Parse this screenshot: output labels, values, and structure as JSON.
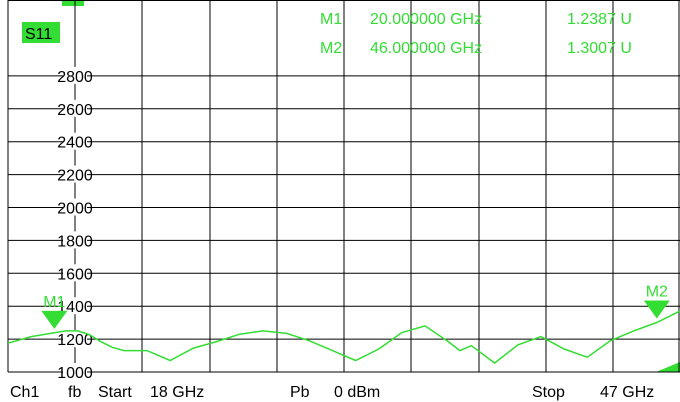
{
  "trace_label": "S11",
  "markers": [
    {
      "name": "M1",
      "freq": "20.000000 GHz",
      "value": "1.2387 U",
      "x_ghz": 20
    },
    {
      "name": "M2",
      "freq": "46.000000 GHz",
      "value": "1.3007 U",
      "x_ghz": 46
    }
  ],
  "status_bar": {
    "channel": "Ch1",
    "mode": "fb",
    "start_label": "Start",
    "start_value": "18 GHz",
    "power_label": "Pb",
    "power_value": "0 dBm",
    "stop_label": "Stop",
    "stop_value": "47 GHz"
  },
  "colors": {
    "trace": "#33dd33",
    "grid": "#000000",
    "background": "#ffffff",
    "text": "#000000"
  },
  "chart_data": {
    "type": "line",
    "title": "",
    "xlabel": "",
    "ylabel": "",
    "xlim": [
      18,
      47
    ],
    "ylim": [
      1000,
      2900
    ],
    "y_ticks": [
      1000,
      1200,
      1400,
      1600,
      1800,
      2000,
      2200,
      2400,
      2600,
      2800
    ],
    "y_tick_labels": [
      "1000",
      "1200",
      "1400",
      "1600",
      "1800",
      "2000",
      "2200",
      "2400",
      "2600",
      "2800"
    ],
    "grid": true,
    "series": [
      {
        "x": [
          18,
          19,
          20,
          20.5,
          21,
          21.5,
          22,
          22.5,
          23,
          24,
          25,
          26,
          27,
          28,
          29,
          30,
          31,
          32,
          33,
          34,
          35,
          36,
          37,
          37.5,
          38,
          39,
          40,
          41,
          42,
          43,
          44,
          45,
          46,
          47
        ],
        "y": [
          1175,
          1215,
          1238,
          1250,
          1250,
          1228,
          1185,
          1150,
          1130,
          1130,
          1070,
          1145,
          1185,
          1230,
          1250,
          1235,
          1190,
          1130,
          1070,
          1140,
          1240,
          1280,
          1185,
          1130,
          1160,
          1055,
          1165,
          1215,
          1140,
          1090,
          1190,
          1250,
          1301,
          1370
        ]
      }
    ]
  }
}
